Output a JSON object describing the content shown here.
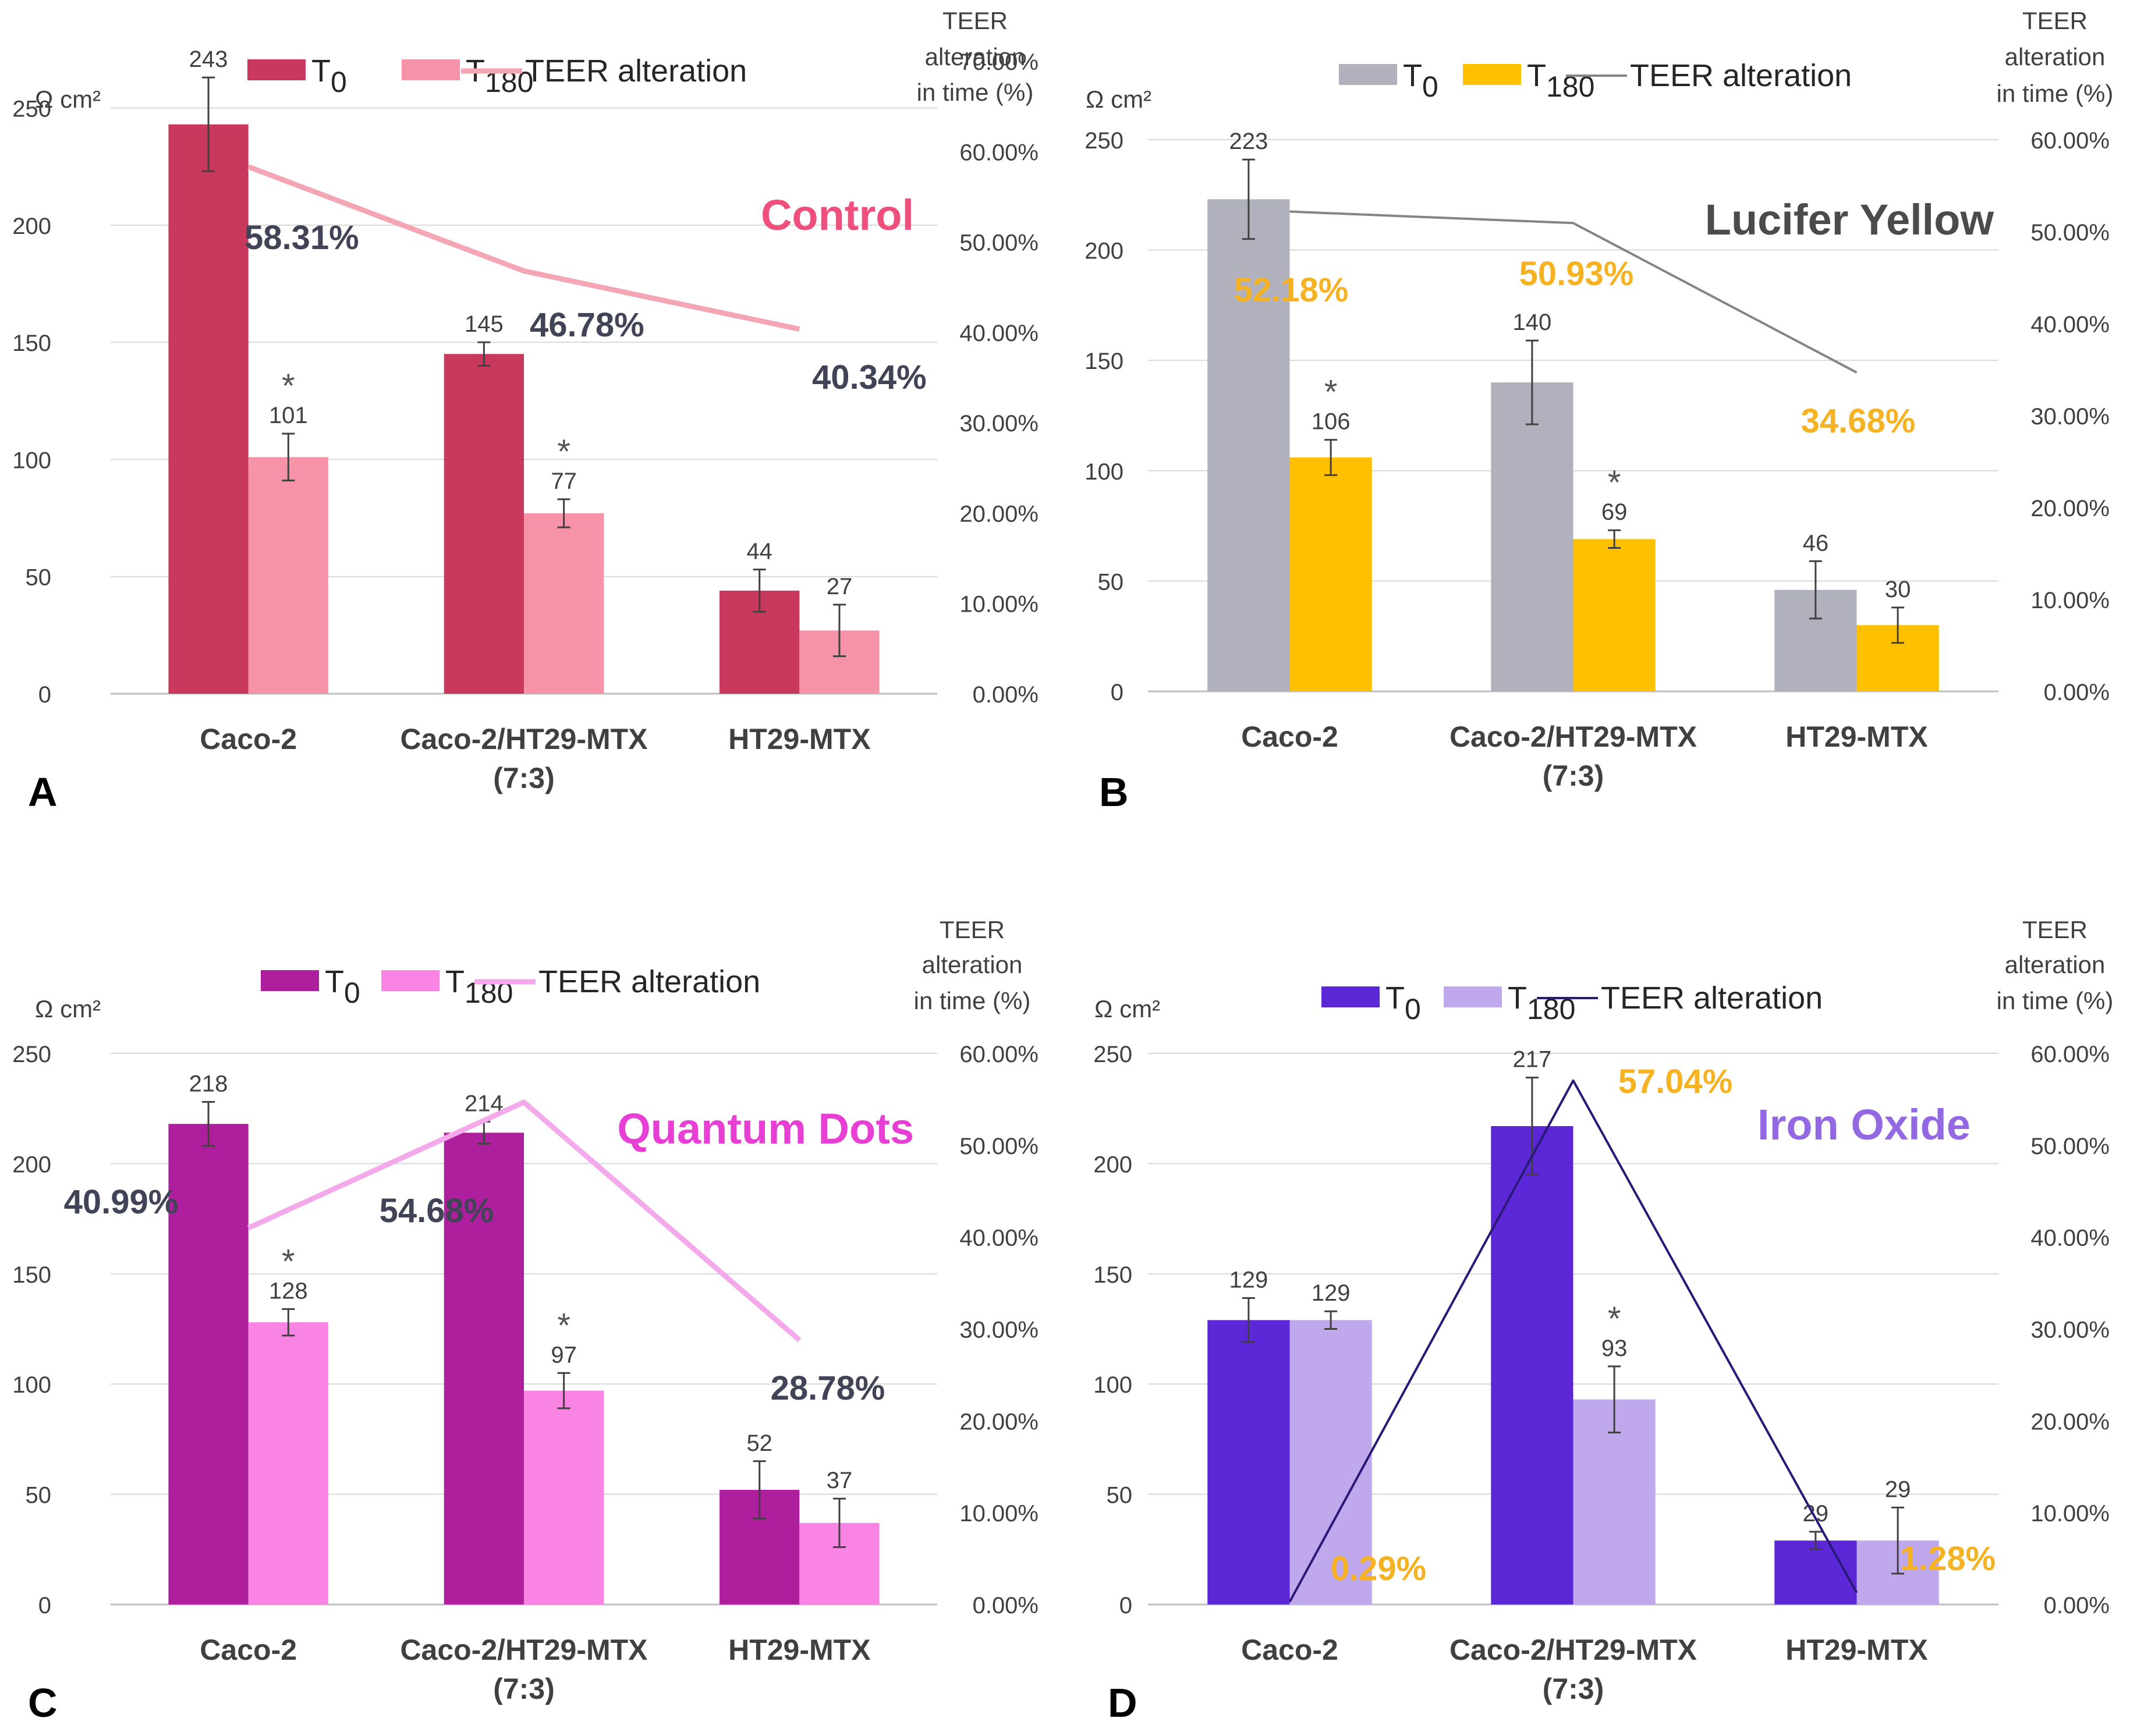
{
  "figure": {
    "subscript_0": "0",
    "subscript_180": "180"
  },
  "chart_data": [
    {
      "type": "bar",
      "panel_letter": "A",
      "title": "Control",
      "categories": [
        "Caco-2",
        "Caco-2/HT29-MTX",
        "HT29-MTX"
      ],
      "category_sublabels": [
        "",
        "(7:3)",
        ""
      ],
      "ylabel": "Ω cm²",
      "y2label": [
        "TEER",
        "alteration",
        "in time (%)"
      ],
      "ylim": [
        0,
        270
      ],
      "yticks": [
        "0",
        "50",
        "100",
        "150",
        "200",
        "250"
      ],
      "y2lim": [
        0,
        0.7
      ],
      "y2ticks": [
        "0.00%",
        "10.00%",
        "20.00%",
        "30.00%",
        "40.00%",
        "50.00%",
        "60.00%",
        "70.00%"
      ],
      "legend": {
        "t0": "T",
        "t180": "T",
        "line": "TEER alteration"
      },
      "colors": {
        "t0": "#c8395d",
        "t180": "#f793a8",
        "line": "#f4a6b4",
        "title": "#ee4f7d",
        "pct": "#414356"
      },
      "series": [
        {
          "name": "T0",
          "values": [
            243,
            145,
            44
          ],
          "errors": [
            20,
            5,
            9
          ]
        },
        {
          "name": "T180",
          "values": [
            101,
            77,
            27
          ],
          "errors": [
            10,
            6,
            11
          ],
          "significant": [
            true,
            true,
            false
          ]
        }
      ],
      "bar_labels": [
        [
          "243",
          "145",
          "44"
        ],
        [
          "101",
          "77",
          "27"
        ]
      ],
      "significance_mark": "*",
      "line": {
        "name": "TEER alteration",
        "values": [
          0.5831,
          0.4678,
          0.4034
        ],
        "labels": [
          "58.31%",
          "46.78%",
          "40.34%"
        ]
      }
    },
    {
      "type": "bar",
      "panel_letter": "B",
      "title": "Lucifer Yellow",
      "categories": [
        "Caco-2",
        "Caco-2/HT29-MTX",
        "HT29-MTX"
      ],
      "category_sublabels": [
        "",
        "(7:3)",
        ""
      ],
      "ylabel": "Ω cm²",
      "y2label": [
        "TEER",
        "alteration",
        "in time (%)"
      ],
      "ylim": [
        0,
        250
      ],
      "yticks": [
        "0",
        "50",
        "100",
        "150",
        "200",
        "250"
      ],
      "y2lim": [
        0,
        0.6
      ],
      "y2ticks": [
        "0.00%",
        "10.00%",
        "20.00%",
        "30.00%",
        "40.00%",
        "50.00%",
        "60.00%"
      ],
      "legend": {
        "t0": "T",
        "t180": "T",
        "line": "TEER alteration"
      },
      "colors": {
        "t0": "#b1b1bd",
        "t180": "#ffc000",
        "line": "#858585",
        "title": "#4b4b4b",
        "pct": "#f5b323"
      },
      "series": [
        {
          "name": "T0",
          "values": [
            223,
            140,
            46
          ],
          "errors": [
            18,
            19,
            13
          ]
        },
        {
          "name": "T180",
          "values": [
            106,
            69,
            30
          ],
          "errors": [
            8,
            4,
            8
          ],
          "significant": [
            true,
            true,
            false
          ]
        }
      ],
      "bar_labels": [
        [
          "223",
          "140",
          "46"
        ],
        [
          "106",
          "69",
          "30"
        ]
      ],
      "significance_mark": "*",
      "line": {
        "name": "TEER alteration",
        "values": [
          0.5218,
          0.5093,
          0.3468
        ],
        "labels": [
          "52.18%",
          "50.93%",
          "34.68%"
        ]
      }
    },
    {
      "type": "bar",
      "panel_letter": "C",
      "title": "Quantum Dots",
      "categories": [
        "Caco-2",
        "Caco-2/HT29-MTX",
        "HT29-MTX"
      ],
      "category_sublabels": [
        "",
        "(7:3)",
        ""
      ],
      "ylabel": "Ω cm²",
      "y2label": [
        "TEER",
        "alteration",
        "in time (%)"
      ],
      "ylim": [
        0,
        250
      ],
      "yticks": [
        "0",
        "50",
        "100",
        "150",
        "200",
        "250"
      ],
      "y2lim": [
        0,
        0.6
      ],
      "y2ticks": [
        "0.00%",
        "10.00%",
        "20.00%",
        "30.00%",
        "40.00%",
        "50.00%",
        "60.00%"
      ],
      "legend": {
        "t0": "T",
        "t180": "T",
        "line": "TEER alteration"
      },
      "colors": {
        "t0": "#ad1f9c",
        "t180": "#f984e4",
        "line": "#f4a9ea",
        "title": "#e73fd4",
        "pct": "#414356"
      },
      "series": [
        {
          "name": "T0",
          "values": [
            218,
            214,
            52
          ],
          "errors": [
            10,
            5,
            13
          ]
        },
        {
          "name": "T180",
          "values": [
            128,
            97,
            37
          ],
          "errors": [
            6,
            8,
            11
          ],
          "significant": [
            true,
            true,
            false
          ]
        }
      ],
      "bar_labels": [
        [
          "218",
          "214",
          "52"
        ],
        [
          "128",
          "97",
          "37"
        ]
      ],
      "significance_mark": "*",
      "line": {
        "name": "TEER alteration",
        "values": [
          0.4099,
          0.5468,
          0.2878
        ],
        "labels": [
          "40.99%",
          "54.68%",
          "28.78%"
        ]
      }
    },
    {
      "type": "bar",
      "panel_letter": "D",
      "title": "Iron Oxide",
      "categories": [
        "Caco-2",
        "Caco-2/HT29-MTX",
        "HT29-MTX"
      ],
      "category_sublabels": [
        "",
        "(7:3)",
        ""
      ],
      "ylabel": "Ω cm²",
      "y2label": [
        "TEER",
        "alteration",
        "in time (%)"
      ],
      "ylim": [
        0,
        250
      ],
      "yticks": [
        "0",
        "50",
        "100",
        "150",
        "200",
        "250"
      ],
      "y2lim": [
        0,
        0.6
      ],
      "y2ticks": [
        "0.00%",
        "10.00%",
        "20.00%",
        "30.00%",
        "40.00%",
        "50.00%",
        "60.00%"
      ],
      "legend": {
        "t0": "T",
        "t180": "T",
        "line": "TEER alteration"
      },
      "colors": {
        "t0": "#5b27d7",
        "t180": "#bfa8ec",
        "line": "#2a1a78",
        "title": "#9269e3",
        "pct": "#f5b323"
      },
      "series": [
        {
          "name": "T0",
          "values": [
            129,
            217,
            29
          ],
          "errors": [
            10,
            22,
            4
          ]
        },
        {
          "name": "T180",
          "values": [
            129,
            93,
            29
          ],
          "errors": [
            4,
            15,
            15
          ],
          "significant": [
            false,
            true,
            false
          ]
        }
      ],
      "bar_labels": [
        [
          "129",
          "217",
          "29"
        ],
        [
          "129",
          "93",
          "29"
        ]
      ],
      "significance_mark": "*",
      "line": {
        "name": "TEER alteration",
        "values": [
          0.0029,
          0.5704,
          0.0128
        ],
        "labels": [
          "0.29%",
          "57.04%",
          "1.28%"
        ]
      }
    }
  ]
}
